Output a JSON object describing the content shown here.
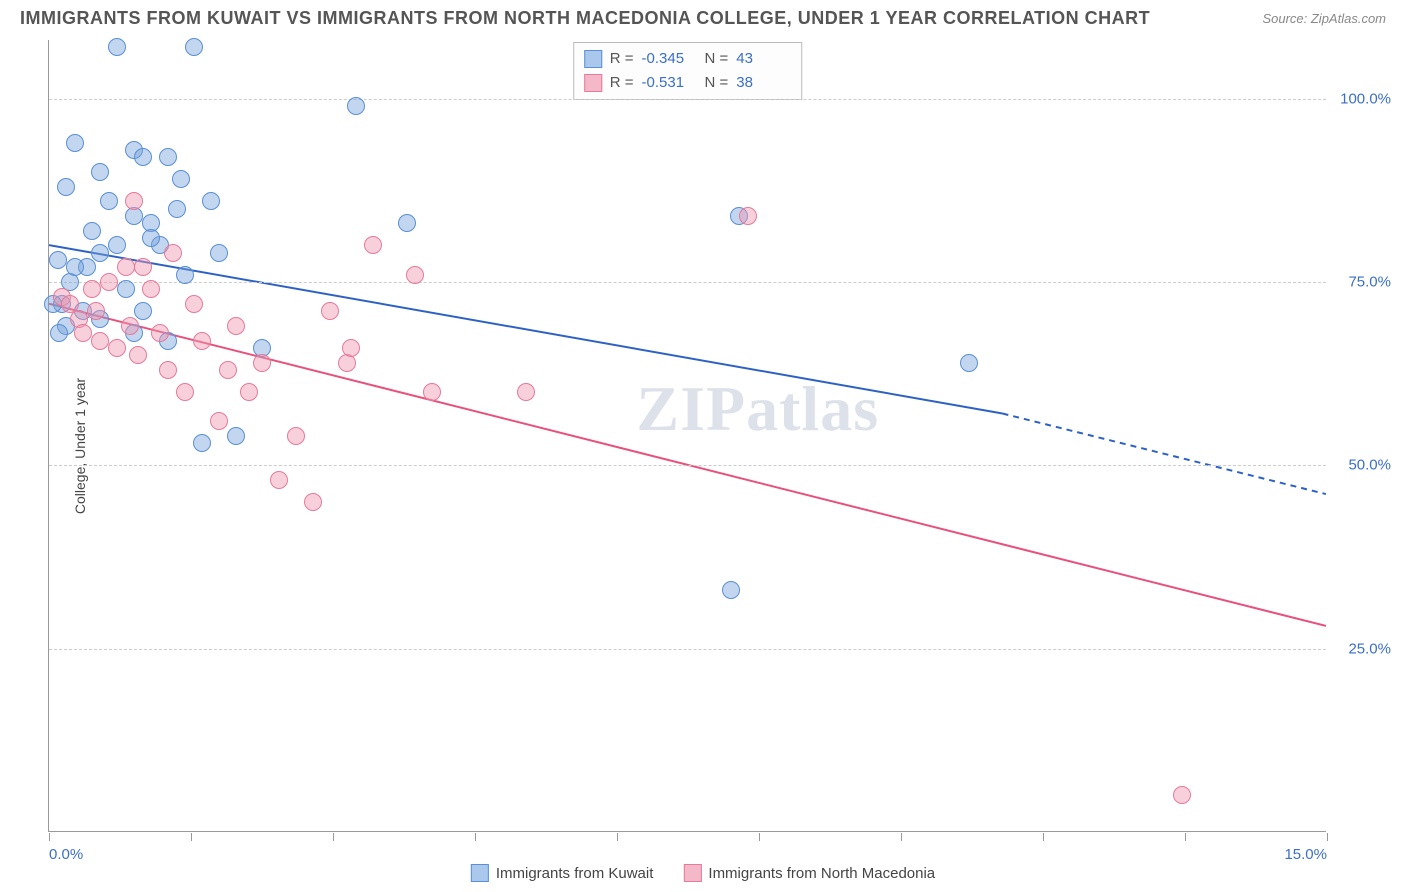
{
  "title": "IMMIGRANTS FROM KUWAIT VS IMMIGRANTS FROM NORTH MACEDONIA COLLEGE, UNDER 1 YEAR CORRELATION CHART",
  "source": "Source: ZipAtlas.com",
  "watermark": "ZIPatlas",
  "y_axis_label": "College, Under 1 year",
  "x_range": [
    0,
    15
  ],
  "y_range": [
    0,
    108
  ],
  "y_gridlines": [
    25,
    50,
    75,
    100
  ],
  "y_tick_labels": [
    "25.0%",
    "50.0%",
    "75.0%",
    "100.0%"
  ],
  "x_ticks": [
    0,
    1.67,
    3.33,
    5.0,
    6.67,
    8.33,
    10.0,
    11.67,
    13.33,
    15.0
  ],
  "x_tick_labels": {
    "left": "0.0%",
    "right": "15.0%"
  },
  "legend_top": [
    {
      "swatch_fill": "#a9c8ec",
      "swatch_border": "#5a8fd6",
      "r_label": "R =",
      "r_val": "-0.345",
      "n_label": "N =",
      "n_val": "43"
    },
    {
      "swatch_fill": "#f4b8c8",
      "swatch_border": "#e67a9a",
      "r_label": "R =",
      "r_val": "-0.531",
      "n_label": "N =",
      "n_val": "38"
    }
  ],
  "legend_bottom": [
    {
      "swatch_fill": "#a9c8ec",
      "swatch_border": "#5a8fd6",
      "label": "Immigrants from Kuwait"
    },
    {
      "swatch_fill": "#f4b8c8",
      "swatch_border": "#e67a9a",
      "label": "Immigrants from North Macedonia"
    }
  ],
  "series": [
    {
      "name": "kuwait",
      "fill": "rgba(120,165,220,0.45)",
      "stroke": "#5a8fd6",
      "marker_radius": 9,
      "points": [
        [
          0.8,
          107
        ],
        [
          1.7,
          107
        ],
        [
          0.3,
          94
        ],
        [
          1.0,
          93
        ],
        [
          1.1,
          92
        ],
        [
          1.4,
          92
        ],
        [
          0.6,
          90
        ],
        [
          1.55,
          89
        ],
        [
          0.2,
          88
        ],
        [
          0.7,
          86
        ],
        [
          1.9,
          86
        ],
        [
          1.0,
          84
        ],
        [
          1.2,
          83
        ],
        [
          3.6,
          99
        ],
        [
          4.2,
          83
        ],
        [
          1.3,
          80
        ],
        [
          0.1,
          78
        ],
        [
          0.45,
          77
        ],
        [
          1.6,
          76
        ],
        [
          0.25,
          75
        ],
        [
          0.9,
          74
        ],
        [
          0.15,
          72
        ],
        [
          0.05,
          72
        ],
        [
          0.4,
          71
        ],
        [
          0.6,
          70
        ],
        [
          0.2,
          69
        ],
        [
          0.12,
          68
        ],
        [
          1.0,
          68
        ],
        [
          1.4,
          67
        ],
        [
          0.6,
          79
        ],
        [
          2.5,
          66
        ],
        [
          1.2,
          81
        ],
        [
          2.0,
          79
        ],
        [
          2.2,
          54
        ],
        [
          1.8,
          53
        ],
        [
          0.3,
          77
        ],
        [
          8.1,
          84
        ],
        [
          8.0,
          33
        ],
        [
          10.8,
          64
        ],
        [
          0.5,
          82
        ],
        [
          0.8,
          80
        ],
        [
          1.1,
          71
        ],
        [
          1.5,
          85
        ]
      ],
      "trend": {
        "x1": 0,
        "y1": 80,
        "x2_solid": 11.2,
        "y2_solid": 57,
        "x2_dash": 15,
        "y2_dash": 46,
        "color": "#2d62c4",
        "width": 2
      }
    },
    {
      "name": "macedonia",
      "fill": "rgba(240,150,175,0.45)",
      "stroke": "#e67a9a",
      "marker_radius": 9,
      "points": [
        [
          0.15,
          73
        ],
        [
          0.25,
          72
        ],
        [
          0.35,
          70
        ],
        [
          0.4,
          68
        ],
        [
          0.55,
          71
        ],
        [
          0.7,
          75
        ],
        [
          0.9,
          77
        ],
        [
          0.6,
          67
        ],
        [
          0.8,
          66
        ],
        [
          1.0,
          86
        ],
        [
          1.1,
          77
        ],
        [
          1.2,
          74
        ],
        [
          1.3,
          68
        ],
        [
          1.4,
          63
        ],
        [
          1.45,
          79
        ],
        [
          1.6,
          60
        ],
        [
          1.7,
          72
        ],
        [
          1.8,
          67
        ],
        [
          2.0,
          56
        ],
        [
          2.1,
          63
        ],
        [
          2.2,
          69
        ],
        [
          2.35,
          60
        ],
        [
          2.5,
          64
        ],
        [
          2.7,
          48
        ],
        [
          2.9,
          54
        ],
        [
          3.1,
          45
        ],
        [
          3.3,
          71
        ],
        [
          3.5,
          64
        ],
        [
          3.8,
          80
        ],
        [
          3.55,
          66
        ],
        [
          4.3,
          76
        ],
        [
          4.5,
          60
        ],
        [
          5.6,
          60
        ],
        [
          8.2,
          84
        ],
        [
          13.3,
          5
        ],
        [
          1.05,
          65
        ],
        [
          0.5,
          74
        ],
        [
          0.95,
          69
        ]
      ],
      "trend": {
        "x1": 0,
        "y1": 72,
        "x2_solid": 15,
        "y2_solid": 28,
        "color": "#e8517c",
        "width": 2
      }
    }
  ],
  "colors": {
    "background": "#ffffff",
    "axis": "#999999",
    "grid": "#cccccc",
    "tick_text": "#3b6fc9",
    "title_text": "#555555"
  }
}
